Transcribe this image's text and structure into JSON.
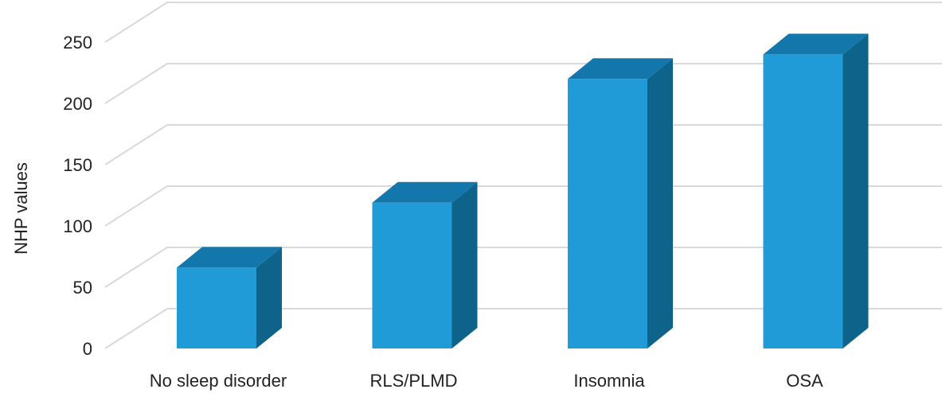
{
  "chart_data": {
    "type": "bar",
    "style": "3d-column",
    "categories": [
      "No sleep disorder",
      "RLS/PLMD",
      "Insomnia",
      "OSA"
    ],
    "values": [
      66,
      119,
      220,
      240
    ],
    "xlabel": "",
    "ylabel": "NHP values",
    "ylim": [
      0,
      250
    ],
    "yticks": [
      0,
      50,
      100,
      150,
      200,
      250
    ],
    "grid": true,
    "legend": "none",
    "colors": {
      "front": "#219BD8",
      "top": "#1477AB",
      "side": "#0D6389",
      "grid": "#D9D9D9"
    }
  }
}
